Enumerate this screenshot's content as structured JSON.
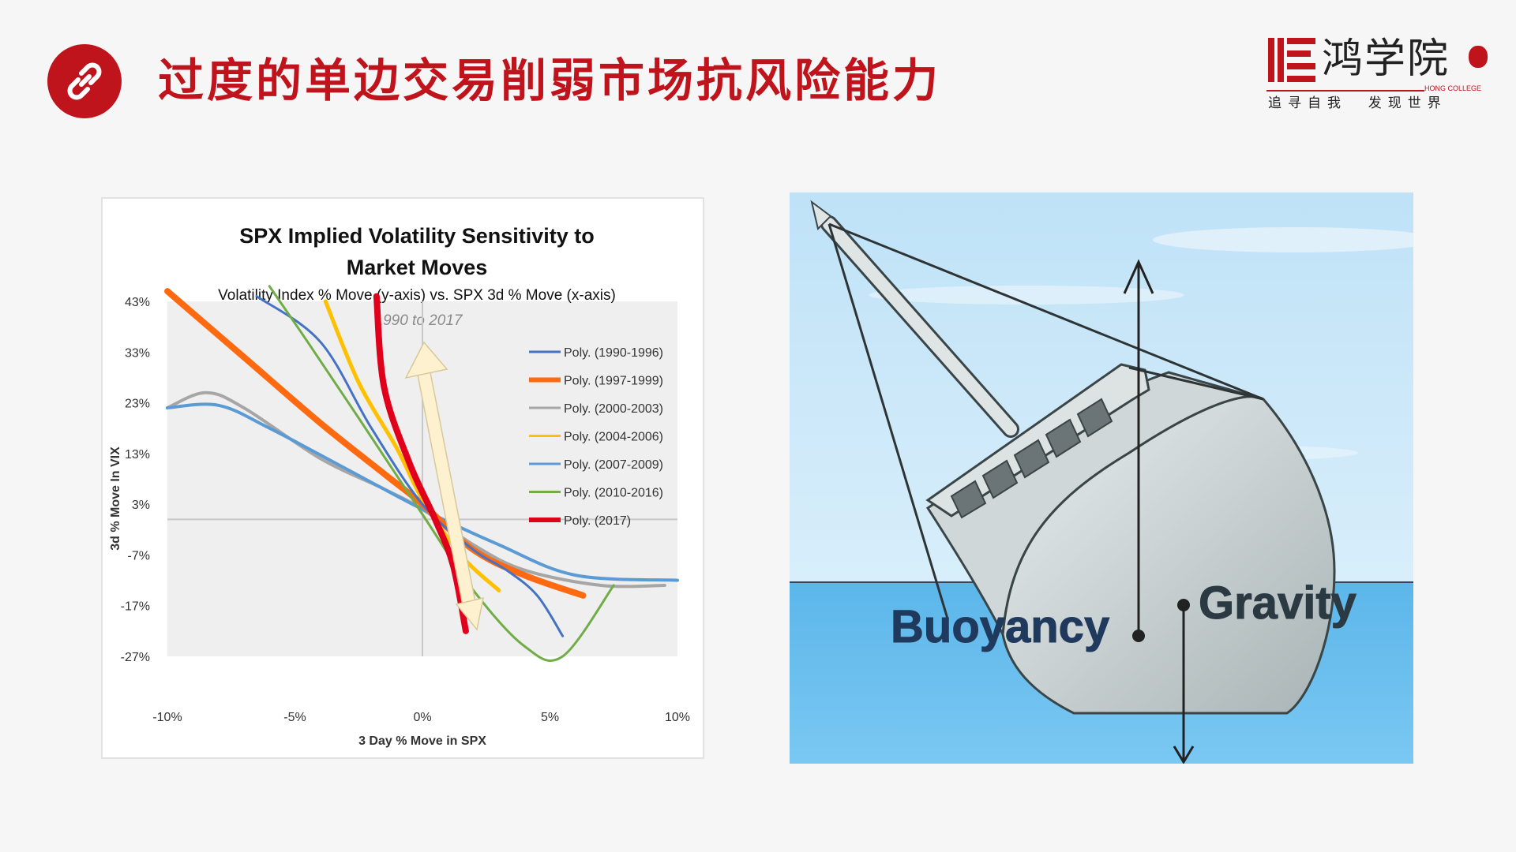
{
  "header": {
    "title": "过度的单边交易削弱市场抗风险能力",
    "icon": "link-icon",
    "accent_color": "#c0141d"
  },
  "logo": {
    "name": "鸿学院",
    "english": "HONG COLLEGE",
    "slogan": "追寻自我  发现世界"
  },
  "chart_data": {
    "type": "line",
    "title": "SPX Implied Volatility Sensitivity to Market Moves",
    "title_line1": "SPX Implied  Volatility  Sensitivity  to",
    "title_line2": "Market Moves",
    "subtitle": "Volatility Index % Move (y-axis) vs. SPX 3d % Move (x-axis)",
    "annotation": "1990 to 2017",
    "xlabel": "3 Day % Move in SPX",
    "ylabel": "3d % Move In VIX",
    "x_ticks": [
      "-10%",
      "-5%",
      "0%",
      "5%",
      "10%"
    ],
    "y_ticks": [
      "43%",
      "33%",
      "23%",
      "13%",
      "3%",
      "-7%",
      "-17%",
      "-27%"
    ],
    "xlim": [
      -10,
      10
    ],
    "ylim": [
      -27,
      43
    ],
    "grid": false,
    "legend_position": "top-right",
    "series": [
      {
        "name": "Poly. (1990-1996)",
        "color": "#4472c4",
        "points": [
          [
            -6.5,
            44
          ],
          [
            -4,
            35
          ],
          [
            -2,
            18
          ],
          [
            0,
            3
          ],
          [
            2,
            -6
          ],
          [
            3.3,
            -10
          ],
          [
            4.5,
            -15
          ],
          [
            5.5,
            -23
          ]
        ]
      },
      {
        "name": "Poly. (1997-1999)",
        "color": "#ff6a10",
        "points": [
          [
            -10,
            45
          ],
          [
            -7,
            32
          ],
          [
            -4,
            19
          ],
          [
            -1.5,
            9
          ],
          [
            0,
            3
          ],
          [
            2,
            -6
          ],
          [
            4,
            -11
          ],
          [
            6.3,
            -15
          ]
        ]
      },
      {
        "name": "Poly. (2000-2003)",
        "color": "#a6a6a6",
        "points": [
          [
            -10,
            22
          ],
          [
            -8.5,
            25
          ],
          [
            -7,
            22
          ],
          [
            -4,
            12
          ],
          [
            -1.5,
            6
          ],
          [
            0,
            2
          ],
          [
            2,
            -5
          ],
          [
            4,
            -10
          ],
          [
            7,
            -13
          ],
          [
            9.5,
            -13
          ]
        ]
      },
      {
        "name": "Poly. (2004-2006)",
        "color": "#ffc000",
        "points": [
          [
            -3.8,
            43
          ],
          [
            -2.5,
            27
          ],
          [
            -1,
            14
          ],
          [
            0,
            4
          ],
          [
            1.5,
            -7
          ],
          [
            3,
            -14
          ]
        ]
      },
      {
        "name": "Poly. (2007-2009)",
        "color": "#5b9bd5",
        "points": [
          [
            -10,
            22
          ],
          [
            -8,
            22.5
          ],
          [
            -6,
            18
          ],
          [
            -3,
            10
          ],
          [
            0,
            2
          ],
          [
            3,
            -5
          ],
          [
            6,
            -11
          ],
          [
            10,
            -12
          ]
        ]
      },
      {
        "name": "Poly. (2010-2016)",
        "color": "#70ad47",
        "points": [
          [
            -6,
            46
          ],
          [
            -4.5,
            35
          ],
          [
            -2.5,
            20
          ],
          [
            0,
            1
          ],
          [
            2,
            -14
          ],
          [
            4,
            -25
          ],
          [
            5.5,
            -27
          ],
          [
            7.5,
            -13
          ]
        ]
      },
      {
        "name": "Poly. (2017)",
        "color": "#e0001b",
        "points": [
          [
            -1.8,
            44
          ],
          [
            -1.5,
            26
          ],
          [
            -0.5,
            11
          ],
          [
            0.5,
            0
          ],
          [
            1.2,
            -9
          ],
          [
            1.7,
            -22
          ]
        ]
      }
    ]
  },
  "diagram": {
    "labels": [
      "Buoyancy",
      "Gravity"
    ]
  }
}
